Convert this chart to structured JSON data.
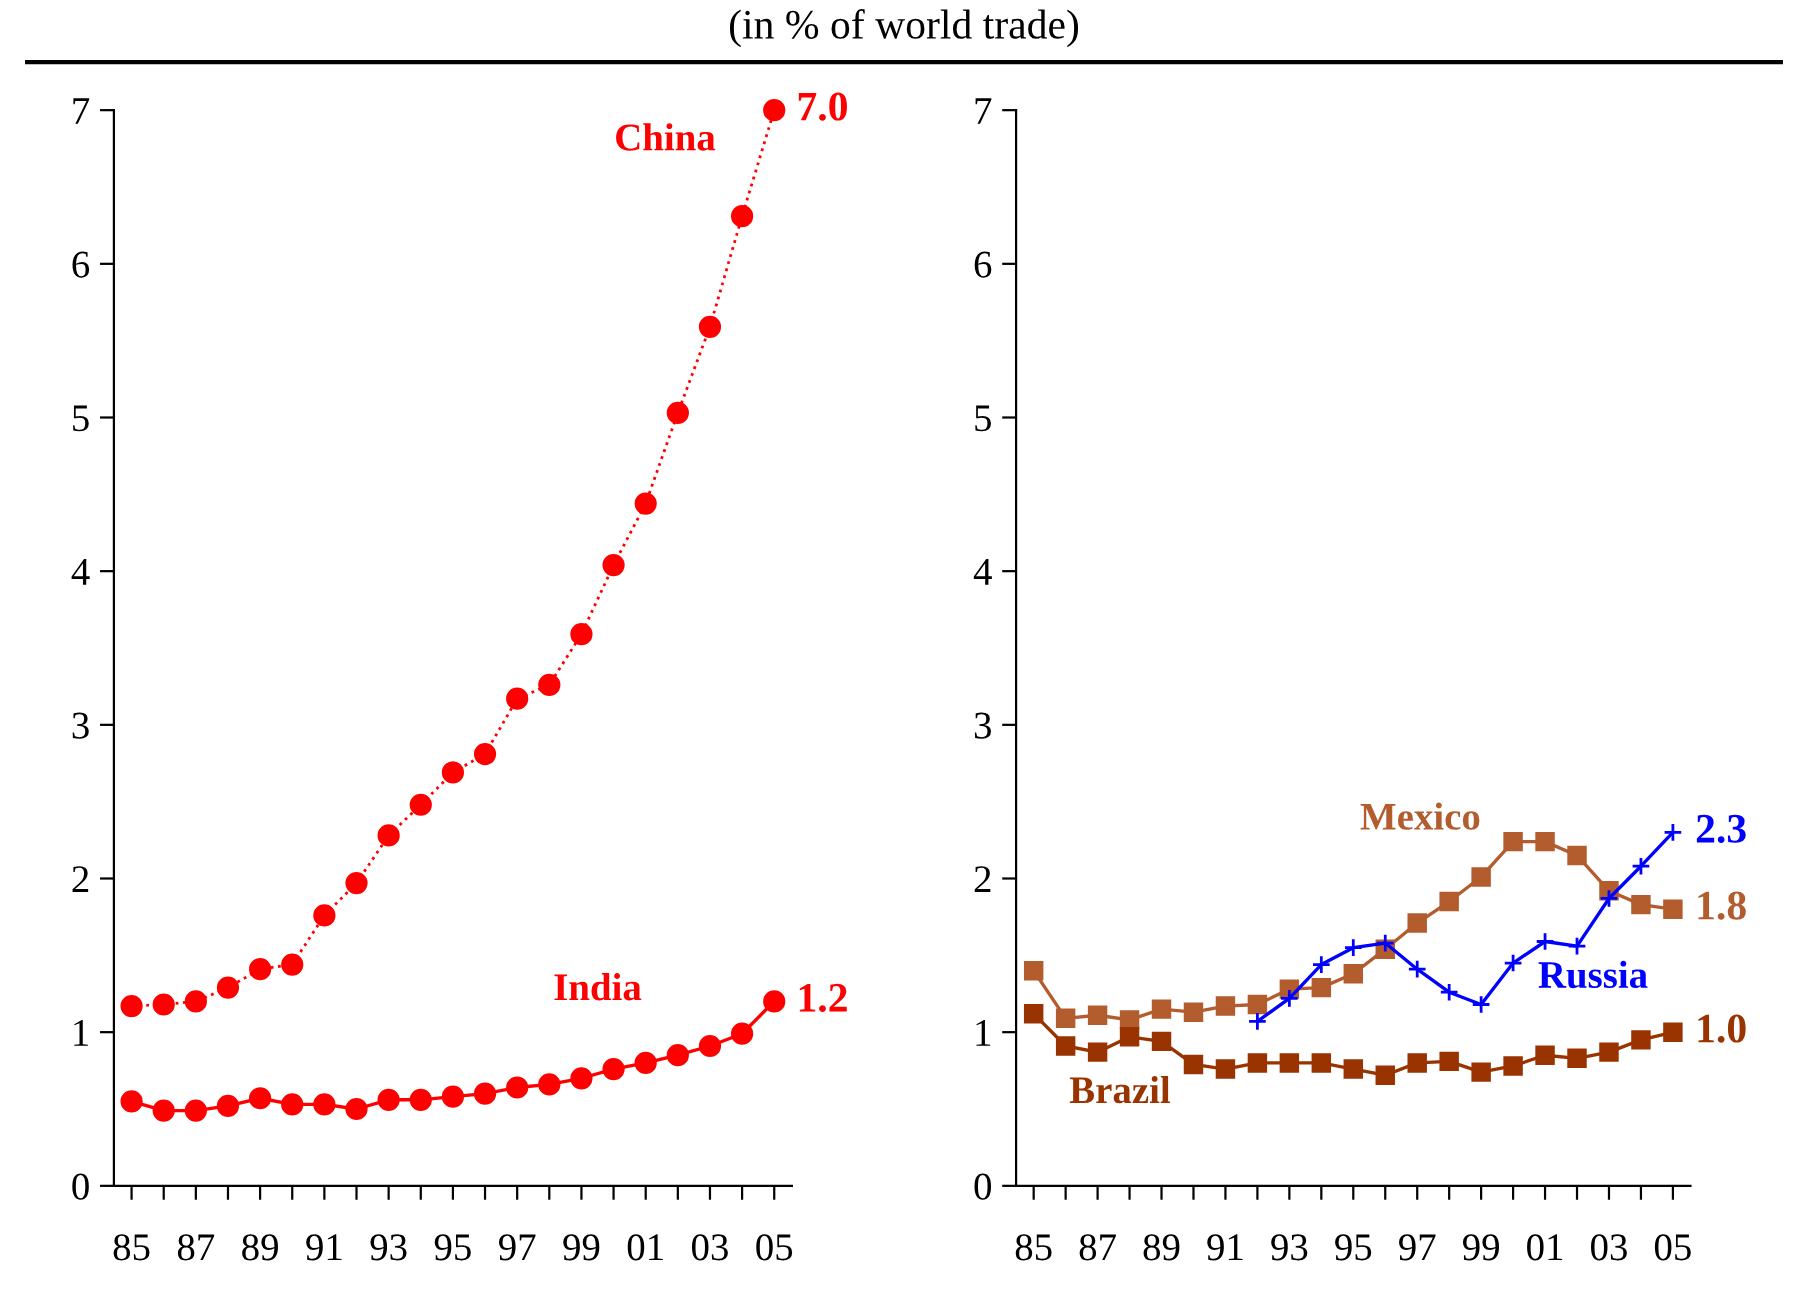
{
  "chart_data": [
    {
      "type": "line",
      "title": "(in % of world trade)",
      "categories": [
        "85",
        null,
        "87",
        null,
        "89",
        null,
        "91",
        null,
        "93",
        null,
        "95",
        null,
        "97",
        null,
        "99",
        null,
        "01",
        null,
        "03",
        null,
        "05"
      ],
      "ylim": [
        0,
        7
      ],
      "yticks": [
        0,
        1,
        2,
        3,
        4,
        5,
        6,
        7
      ],
      "grid": false,
      "legend": false,
      "series": [
        {
          "name": "China",
          "color": "#ff0000",
          "marker": "circle",
          "line_style": "dotted",
          "values": [
            1.17,
            1.18,
            1.2,
            1.29,
            1.41,
            1.44,
            1.76,
            1.97,
            2.28,
            2.48,
            2.69,
            2.81,
            3.17,
            3.26,
            3.59,
            4.04,
            4.44,
            5.03,
            5.59,
            6.31,
            7.0
          ],
          "value_labels": [
            null,
            null,
            null,
            null,
            null,
            null,
            null,
            null,
            null,
            null,
            null,
            null,
            null,
            null,
            null,
            null,
            null,
            null,
            null,
            null,
            "7.0"
          ]
        },
        {
          "name": "India",
          "color": "#ff0000",
          "marker": "circle",
          "line_style": "solid",
          "values": [
            0.55,
            0.49,
            0.49,
            0.52,
            0.57,
            0.53,
            0.53,
            0.5,
            0.56,
            0.56,
            0.58,
            0.6,
            0.64,
            0.66,
            0.7,
            0.76,
            0.8,
            0.85,
            0.91,
            0.99,
            1.2
          ],
          "value_labels": [
            null,
            null,
            null,
            null,
            null,
            null,
            null,
            null,
            null,
            null,
            null,
            null,
            null,
            null,
            null,
            null,
            null,
            null,
            null,
            null,
            "1.2"
          ]
        }
      ]
    },
    {
      "type": "line",
      "categories": [
        "85",
        null,
        "87",
        null,
        "89",
        null,
        "91",
        null,
        "93",
        null,
        "95",
        null,
        "97",
        null,
        "99",
        null,
        "01",
        null,
        "03",
        null,
        "05"
      ],
      "ylim": [
        0,
        7
      ],
      "yticks": [
        0,
        1,
        2,
        3,
        4,
        5,
        6,
        7
      ],
      "grid": false,
      "legend": false,
      "series": [
        {
          "name": "Mexico",
          "color": "#b35c2e",
          "marker": "square",
          "line_style": "solid",
          "values": [
            1.4,
            1.09,
            1.11,
            1.08,
            1.15,
            1.13,
            1.17,
            1.18,
            1.28,
            1.29,
            1.38,
            1.54,
            1.71,
            1.85,
            2.01,
            2.24,
            2.24,
            2.15,
            1.92,
            1.83,
            1.8
          ],
          "value_labels": [
            null,
            null,
            null,
            null,
            null,
            null,
            null,
            null,
            null,
            null,
            null,
            null,
            null,
            null,
            null,
            null,
            null,
            null,
            null,
            null,
            "1.8"
          ]
        },
        {
          "name": "Brazil",
          "color": "#993300",
          "marker": "square",
          "line_style": "solid",
          "values": [
            1.12,
            0.91,
            0.87,
            0.97,
            0.94,
            0.79,
            0.76,
            0.8,
            0.8,
            0.8,
            0.76,
            0.72,
            0.8,
            0.81,
            0.74,
            0.78,
            0.85,
            0.83,
            0.87,
            0.95,
            1.0
          ],
          "value_labels": [
            null,
            null,
            null,
            null,
            null,
            null,
            null,
            null,
            null,
            null,
            null,
            null,
            null,
            null,
            null,
            null,
            null,
            null,
            null,
            null,
            "1.0"
          ]
        },
        {
          "name": "Russia",
          "color": "#0000ff",
          "marker": "cross",
          "line_style": "solid",
          "values": [
            null,
            null,
            null,
            null,
            null,
            null,
            null,
            1.07,
            1.22,
            1.44,
            1.55,
            1.58,
            1.41,
            1.26,
            1.18,
            1.45,
            1.59,
            1.56,
            1.87,
            2.08,
            2.3
          ],
          "value_labels": [
            null,
            null,
            null,
            null,
            null,
            null,
            null,
            null,
            null,
            null,
            null,
            null,
            null,
            null,
            null,
            null,
            null,
            null,
            null,
            null,
            "2.3"
          ]
        }
      ]
    }
  ]
}
